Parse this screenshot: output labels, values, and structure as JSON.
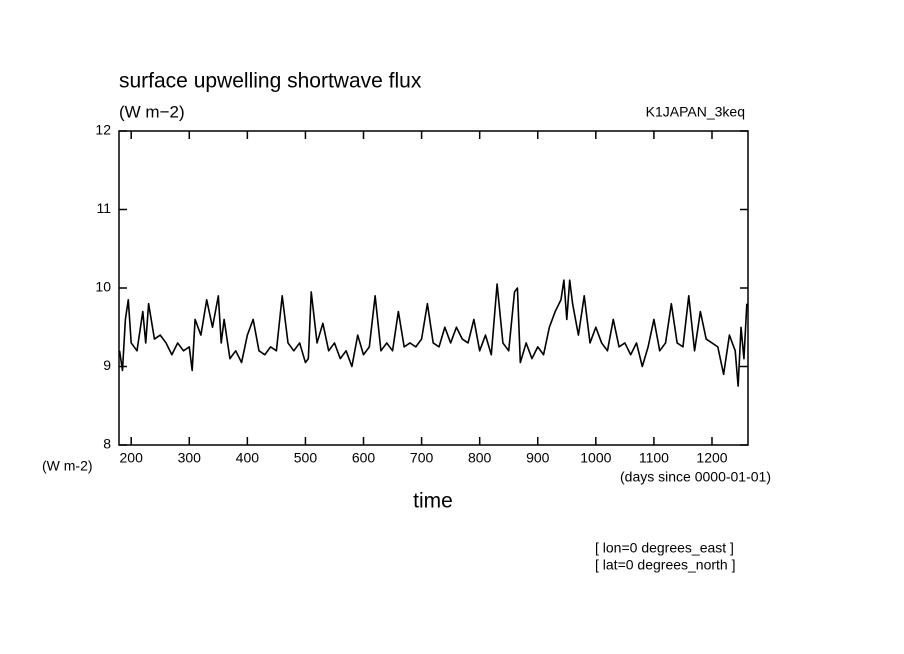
{
  "chart_data": {
    "type": "line",
    "title": "surface upwelling shortwave flux",
    "subtitle": "(W m−2)",
    "source": "K1JAPAN_3keq",
    "ylabel": "(W m-2)",
    "xunits": "(days since 0000-01-01)",
    "xlabel": "time",
    "annotations": [
      "[ lon=0 degrees_east ]",
      "[ lat=0 degrees_north ]"
    ],
    "color": "#000000",
    "xlim": [
      179,
      1262
    ],
    "ylim": [
      8,
      12
    ],
    "xticks": [
      200,
      300,
      400,
      500,
      600,
      700,
      800,
      900,
      1000,
      1100,
      1200
    ],
    "yticks": [
      8,
      9,
      10,
      11,
      12
    ],
    "x": [
      180,
      185,
      190,
      195,
      200,
      210,
      220,
      225,
      230,
      240,
      250,
      260,
      270,
      280,
      290,
      300,
      305,
      310,
      320,
      330,
      340,
      350,
      355,
      360,
      370,
      380,
      390,
      400,
      410,
      420,
      430,
      440,
      450,
      460,
      470,
      480,
      490,
      500,
      505,
      510,
      520,
      530,
      540,
      550,
      560,
      570,
      580,
      590,
      600,
      610,
      620,
      630,
      640,
      650,
      660,
      670,
      680,
      690,
      700,
      710,
      720,
      730,
      740,
      750,
      760,
      770,
      780,
      790,
      800,
      810,
      820,
      830,
      840,
      850,
      860,
      865,
      870,
      880,
      890,
      900,
      910,
      920,
      930,
      940,
      945,
      950,
      955,
      960,
      970,
      980,
      990,
      1000,
      1010,
      1020,
      1030,
      1040,
      1050,
      1060,
      1070,
      1080,
      1090,
      1100,
      1110,
      1120,
      1130,
      1140,
      1150,
      1160,
      1170,
      1180,
      1190,
      1200,
      1210,
      1220,
      1230,
      1240,
      1245,
      1250,
      1255,
      1260
    ],
    "values": [
      9.2,
      8.95,
      9.6,
      9.85,
      9.3,
      9.2,
      9.7,
      9.3,
      9.8,
      9.35,
      9.4,
      9.3,
      9.15,
      9.3,
      9.2,
      9.25,
      8.95,
      9.6,
      9.4,
      9.85,
      9.5,
      9.9,
      9.3,
      9.6,
      9.1,
      9.2,
      9.05,
      9.4,
      9.6,
      9.2,
      9.15,
      9.25,
      9.2,
      9.9,
      9.3,
      9.2,
      9.3,
      9.05,
      9.1,
      9.95,
      9.3,
      9.55,
      9.2,
      9.3,
      9.1,
      9.2,
      9.0,
      9.4,
      9.15,
      9.25,
      9.9,
      9.2,
      9.3,
      9.2,
      9.7,
      9.25,
      9.3,
      9.25,
      9.35,
      9.8,
      9.3,
      9.25,
      9.5,
      9.3,
      9.5,
      9.35,
      9.3,
      9.6,
      9.2,
      9.4,
      9.15,
      10.05,
      9.3,
      9.2,
      9.95,
      10.0,
      9.05,
      9.3,
      9.1,
      9.25,
      9.15,
      9.5,
      9.7,
      9.85,
      10.1,
      9.6,
      10.1,
      9.8,
      9.4,
      9.9,
      9.3,
      9.5,
      9.3,
      9.2,
      9.6,
      9.25,
      9.3,
      9.15,
      9.3,
      9.0,
      9.25,
      9.6,
      9.2,
      9.3,
      9.8,
      9.3,
      9.25,
      9.9,
      9.2,
      9.7,
      9.35,
      9.3,
      9.25,
      8.9,
      9.4,
      9.2,
      8.75,
      9.5,
      9.1,
      9.8
    ]
  }
}
